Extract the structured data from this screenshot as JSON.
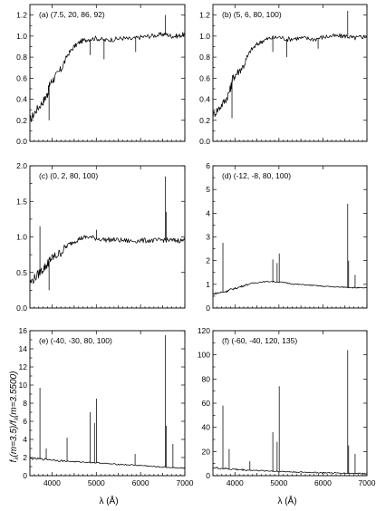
{
  "figure": {
    "xlabel": "λ (Å)",
    "ylabel": "f (m=3.5)/f (m=3.5500)",
    "ylabel_parts": [
      "f",
      "λ",
      "(m=3.5)/f",
      "λ",
      "(m=3.5500)"
    ]
  },
  "chart_data": [
    {
      "type": "line",
      "label": "(a) (7.5, 20, 86, 92)",
      "xlim": [
        3500,
        7000
      ],
      "ylim": [
        0.0,
        1.3
      ],
      "yticks": [
        0.0,
        0.2,
        0.4,
        0.6,
        0.8,
        1.0,
        1.2
      ],
      "ytick_labels": [
        "0.0",
        "0.2",
        "0.4",
        "0.6",
        "0.8",
        "1.0",
        "1.2"
      ],
      "xticks": [
        4000,
        5000,
        6000,
        7000
      ],
      "xtick_labels": [],
      "x": [
        3500,
        3650,
        3800,
        3900,
        3950,
        4050,
        4200,
        4350,
        4500,
        4650,
        4800,
        5000,
        5200,
        5400,
        5600,
        5800,
        6000,
        6200,
        6400,
        6550,
        6700,
        6850,
        7000
      ],
      "y": [
        0.2,
        0.3,
        0.38,
        0.45,
        0.55,
        0.6,
        0.68,
        0.82,
        0.9,
        0.95,
        0.97,
        0.98,
        0.96,
        0.97,
        0.98,
        0.97,
        0.99,
        1.0,
        1.01,
        1.02,
        1.0,
        1.0,
        1.02
      ],
      "lines": [
        {
          "x": 3933,
          "top": 0.2,
          "dir": "down"
        },
        {
          "x": 4861,
          "top": 0.82,
          "dir": "down"
        },
        {
          "x": 5175,
          "top": 0.78,
          "dir": "down"
        },
        {
          "x": 5890,
          "top": 0.85,
          "dir": "down"
        },
        {
          "x": 6563,
          "top": 1.2,
          "dir": "up"
        }
      ]
    },
    {
      "type": "line",
      "label": "(b) (5, 6, 80, 100)",
      "xlim": [
        3500,
        7000
      ],
      "ylim": [
        0.0,
        1.3
      ],
      "yticks": [
        0.0,
        0.2,
        0.4,
        0.6,
        0.8,
        1.0,
        1.2
      ],
      "ytick_labels": [
        "0.0",
        "0.2",
        "0.4",
        "0.6",
        "0.8",
        "1.0",
        "1.2"
      ],
      "xticks": [
        4000,
        5000,
        6000,
        7000
      ],
      "xtick_labels": [],
      "x": [
        3500,
        3650,
        3800,
        3900,
        3950,
        4050,
        4200,
        4350,
        4500,
        4650,
        4800,
        5000,
        5200,
        5400,
        5600,
        5800,
        6000,
        6200,
        6400,
        6550,
        6700,
        6850,
        7000
      ],
      "y": [
        0.25,
        0.32,
        0.4,
        0.5,
        0.6,
        0.65,
        0.72,
        0.86,
        0.92,
        0.96,
        0.98,
        0.99,
        0.97,
        0.98,
        0.98,
        0.97,
        0.99,
        1.0,
        1.0,
        1.0,
        0.98,
        0.99,
        1.0
      ],
      "lines": [
        {
          "x": 3933,
          "top": 0.22,
          "dir": "down"
        },
        {
          "x": 4861,
          "top": 0.85,
          "dir": "down"
        },
        {
          "x": 5175,
          "top": 0.8,
          "dir": "down"
        },
        {
          "x": 5890,
          "top": 0.88,
          "dir": "down"
        },
        {
          "x": 6563,
          "top": 1.24,
          "dir": "up"
        }
      ]
    },
    {
      "type": "line",
      "label": "(c) (0, 2, 80, 100)",
      "xlim": [
        3500,
        7000
      ],
      "ylim": [
        0.0,
        2.0
      ],
      "yticks": [
        0.0,
        0.5,
        1.0,
        1.5,
        2.0
      ],
      "ytick_labels": [
        "0.0",
        "0.5",
        "1.0",
        "1.5",
        "2.0"
      ],
      "xticks": [
        4000,
        5000,
        6000,
        7000
      ],
      "xtick_labels": [],
      "x": [
        3500,
        3650,
        3800,
        3900,
        3950,
        4050,
        4200,
        4350,
        4500,
        4650,
        4800,
        5000,
        5200,
        5400,
        5600,
        5800,
        6000,
        6200,
        6400,
        6550,
        6700,
        6850,
        7000
      ],
      "y": [
        0.35,
        0.45,
        0.55,
        0.62,
        0.68,
        0.72,
        0.78,
        0.88,
        0.94,
        0.98,
        1.0,
        0.98,
        0.96,
        0.96,
        0.95,
        0.94,
        0.95,
        0.95,
        0.95,
        0.96,
        0.95,
        0.95,
        0.95
      ],
      "lines": [
        {
          "x": 3727,
          "top": 1.15,
          "dir": "up"
        },
        {
          "x": 3933,
          "top": 0.25,
          "dir": "down"
        },
        {
          "x": 5007,
          "top": 1.1,
          "dir": "up"
        },
        {
          "x": 6563,
          "top": 1.85,
          "dir": "up"
        },
        {
          "x": 6584,
          "top": 1.35,
          "dir": "up"
        }
      ]
    },
    {
      "type": "line",
      "label": "(d) (-12, -8, 80, 100)",
      "xlim": [
        3500,
        7000
      ],
      "ylim": [
        0,
        6
      ],
      "yticks": [
        0,
        1,
        2,
        3,
        4,
        5,
        6
      ],
      "ytick_labels": [
        "0",
        "1",
        "2",
        "3",
        "4",
        "5",
        "6"
      ],
      "xticks": [
        4000,
        5000,
        6000,
        7000
      ],
      "xtick_labels": [],
      "x": [
        3500,
        3650,
        3800,
        3900,
        4050,
        4200,
        4400,
        4600,
        4800,
        5000,
        5200,
        5400,
        5600,
        5800,
        6000,
        6200,
        6400,
        6550,
        6700,
        6850,
        7000
      ],
      "y": [
        0.6,
        0.65,
        0.7,
        0.78,
        0.85,
        0.95,
        1.05,
        1.1,
        1.12,
        1.1,
        1.05,
        1.0,
        0.98,
        0.95,
        0.92,
        0.9,
        0.88,
        0.88,
        0.86,
        0.85,
        0.85
      ],
      "lines": [
        {
          "x": 3727,
          "top": 2.75,
          "dir": "up"
        },
        {
          "x": 4861,
          "top": 2.05,
          "dir": "up"
        },
        {
          "x": 4959,
          "top": 1.9,
          "dir": "up"
        },
        {
          "x": 5007,
          "top": 2.3,
          "dir": "up"
        },
        {
          "x": 6563,
          "top": 4.4,
          "dir": "up"
        },
        {
          "x": 6584,
          "top": 2.0,
          "dir": "up"
        },
        {
          "x": 6731,
          "top": 1.4,
          "dir": "up"
        }
      ]
    },
    {
      "type": "line",
      "label": "(e) (-40, -30, 80, 100)",
      "xlim": [
        3500,
        7000
      ],
      "ylim": [
        0,
        16
      ],
      "yticks": [
        0,
        2,
        4,
        6,
        8,
        10,
        12,
        14,
        16
      ],
      "ytick_labels": [
        "0",
        "2",
        "4",
        "6",
        "8",
        "10",
        "12",
        "14",
        "16"
      ],
      "xticks": [
        4000,
        5000,
        6000,
        7000
      ],
      "xtick_labels": [
        "4000",
        "5000",
        "6000",
        "7000"
      ],
      "x": [
        3500,
        3700,
        3900,
        4100,
        4300,
        4500,
        4700,
        4900,
        5100,
        5300,
        5500,
        5700,
        5900,
        6100,
        6300,
        6500,
        6700,
        6900,
        7000
      ],
      "y": [
        1.9,
        1.85,
        1.8,
        1.7,
        1.6,
        1.55,
        1.5,
        1.45,
        1.4,
        1.3,
        1.25,
        1.2,
        1.15,
        1.1,
        1.0,
        0.95,
        0.9,
        0.85,
        0.8
      ],
      "lines": [
        {
          "x": 3727,
          "top": 9.7,
          "dir": "up"
        },
        {
          "x": 3869,
          "top": 3.0,
          "dir": "up"
        },
        {
          "x": 4340,
          "top": 4.2,
          "dir": "up"
        },
        {
          "x": 4861,
          "top": 7.0,
          "dir": "up"
        },
        {
          "x": 4959,
          "top": 5.8,
          "dir": "up"
        },
        {
          "x": 5007,
          "top": 8.5,
          "dir": "up"
        },
        {
          "x": 5876,
          "top": 2.4,
          "dir": "up"
        },
        {
          "x": 6563,
          "top": 15.5,
          "dir": "up"
        },
        {
          "x": 6584,
          "top": 5.5,
          "dir": "up"
        },
        {
          "x": 6731,
          "top": 3.5,
          "dir": "up"
        }
      ]
    },
    {
      "type": "line",
      "label": "(f) (-60, -40, 120, 135)",
      "xlim": [
        3500,
        7000
      ],
      "ylim": [
        0,
        120
      ],
      "yticks": [
        0,
        20,
        40,
        60,
        80,
        100,
        120
      ],
      "ytick_labels": [
        "0",
        "20",
        "40",
        "60",
        "80",
        "100",
        "120"
      ],
      "xticks": [
        4000,
        5000,
        6000,
        7000
      ],
      "xtick_labels": [
        "4000",
        "5000",
        "6000",
        "7000"
      ],
      "x": [
        3500,
        3700,
        3900,
        4100,
        4300,
        4500,
        4700,
        4900,
        5100,
        5300,
        5500,
        5700,
        5900,
        6100,
        6300,
        6500,
        6700,
        6900,
        7000
      ],
      "y": [
        6.5,
        6.0,
        5.5,
        5.0,
        4.6,
        4.3,
        4.0,
        3.7,
        3.4,
        3.1,
        2.9,
        2.7,
        2.5,
        2.3,
        2.2,
        2.0,
        1.9,
        1.8,
        1.7
      ],
      "lines": [
        {
          "x": 3727,
          "top": 58.0,
          "dir": "up"
        },
        {
          "x": 3869,
          "top": 22.0,
          "dir": "up"
        },
        {
          "x": 4340,
          "top": 12.0,
          "dir": "up"
        },
        {
          "x": 4861,
          "top": 36.0,
          "dir": "up"
        },
        {
          "x": 4959,
          "top": 28.0,
          "dir": "up"
        },
        {
          "x": 5007,
          "top": 74.0,
          "dir": "up"
        },
        {
          "x": 6563,
          "top": 104.0,
          "dir": "up"
        },
        {
          "x": 6584,
          "top": 25.0,
          "dir": "up"
        },
        {
          "x": 6731,
          "top": 18.0,
          "dir": "up"
        }
      ]
    }
  ]
}
